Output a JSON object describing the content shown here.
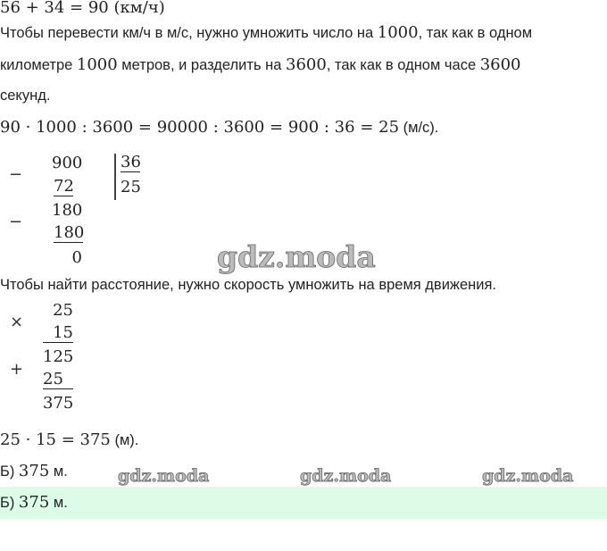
{
  "lines": {
    "prev": "56 + 34 = 90 (км/ч)",
    "p1a": "Чтобы перевести км/ч в м/с, нужно умножить число на ",
    "p1n": "1000",
    "p1b": ", так как в одном",
    "p2a": "километре ",
    "p2n": "1000",
    "p2b": " метров, и разделить на ",
    "p2n2": "3600",
    "p2c": ", так как в одном часе ",
    "p2n3": "3600",
    "p3": "секунд.",
    "eq1": "90 · 1000 : 3600 = 90000 : 3600 = 900 : 36 = 25",
    "eq1u": " (м/с).",
    "dist": "Чтобы найти расстояние, нужно скорость умножить на время движения.",
    "eq2": "25 · 15 = 375",
    "eq2u": " (м).",
    "ans_pre": "Б) ",
    "ans_num": "375",
    "ans_unit": " м."
  },
  "division": {
    "minus": "−",
    "dividend": "900",
    "sub1": "72",
    "rem1": "180",
    "sub2": "180",
    "rem2": "0",
    "divisor": "36",
    "quotient": "25"
  },
  "multiplication": {
    "times": "×",
    "plus": "+",
    "a": "25",
    "b": "15",
    "p1": "125",
    "p2": "25",
    "result": "375"
  },
  "watermark": "gdz.moda",
  "colors": {
    "answer_bg": "#dcfce8"
  }
}
